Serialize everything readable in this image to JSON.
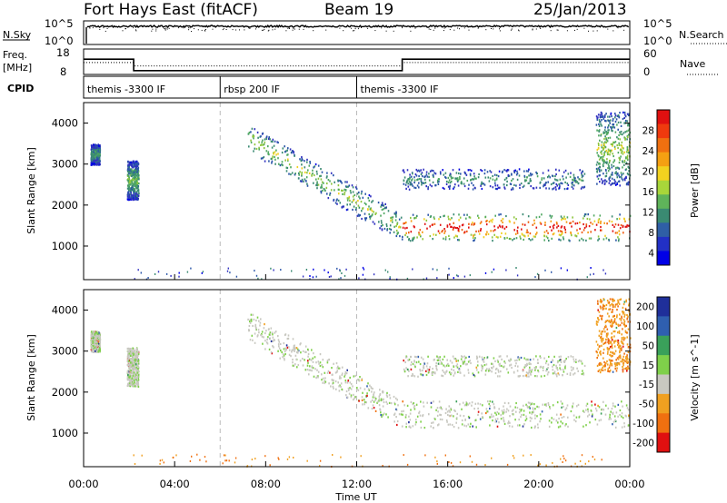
{
  "header": {
    "station": "Fort Hays East (fitACF)",
    "beam": "Beam 19",
    "date": "25/Jan/2013"
  },
  "noise_panel": {
    "left_label": "N.Sky",
    "right_label": "N.Search",
    "left_ticks": [
      "10^5",
      "10^0"
    ],
    "right_ticks": [
      "10^5",
      "10^0"
    ]
  },
  "freq_panel": {
    "left_label_1": "Freq.",
    "left_label_2": "[MHz]",
    "left_ticks": [
      "18",
      "8"
    ],
    "right_ticks": [
      "60",
      "0"
    ],
    "right_label": "Nave",
    "freq_segments_mhz": [
      {
        "start_hour": 0.0,
        "end_hour": 2.2,
        "value": 14.0
      },
      {
        "start_hour": 2.2,
        "end_hour": 14.0,
        "value": 9.5
      },
      {
        "start_hour": 14.0,
        "end_hour": 24.0,
        "value": 14.0
      }
    ],
    "nave_segments": [
      {
        "start_hour": 0.0,
        "end_hour": 2.2,
        "value": 28
      },
      {
        "start_hour": 2.2,
        "end_hour": 14.0,
        "value": 20
      },
      {
        "start_hour": 14.0,
        "end_hour": 24.0,
        "value": 28
      }
    ]
  },
  "cpid_panel": {
    "label": "CPID",
    "segments": [
      {
        "start_hour": 0.0,
        "end_hour": 6.0,
        "text": "themis -3300 IF"
      },
      {
        "start_hour": 6.0,
        "end_hour": 12.0,
        "text": "rbsp 200 IF"
      },
      {
        "start_hour": 12.0,
        "end_hour": 24.0,
        "text": "themis -3300 IF"
      }
    ]
  },
  "power_panel": {
    "ylabel": "Slant Range [km]",
    "colorbar_label": "Power [dB]",
    "colorbar_ticks": [
      "28",
      "24",
      "20",
      "16",
      "12",
      "8",
      "4"
    ]
  },
  "velocity_panel": {
    "ylabel": "Slant Range [km]",
    "colorbar_label": "Velocity [m s^-1]",
    "colorbar_ticks": [
      "200",
      "100",
      "50",
      "15",
      "-15",
      "-50",
      "-100",
      "-200"
    ]
  },
  "xaxis": {
    "label": "Time UT",
    "ticks": [
      "00:00",
      "04:00",
      "08:00",
      "12:00",
      "16:00",
      "20:00",
      "00:00"
    ]
  },
  "y_ticks": [
    "4000",
    "3000",
    "2000",
    "1000"
  ],
  "chart_data": {
    "type": "heatmap",
    "title": "Fort Hays East (fitACF)  Beam 19  25/Jan/2013",
    "xlabel": "Time UT",
    "ylabel": "Slant Range [km]",
    "xlim_hours": [
      0,
      24
    ],
    "ylim_km": [
      180,
      4500
    ],
    "vertical_dashed_lines_hours": [
      6,
      12
    ],
    "scatter_regions": [
      {
        "name": "patch_a",
        "t_start": 0.3,
        "t_end": 0.7,
        "r_low": 3000,
        "r_high": 3500,
        "power_db": 10,
        "velocity": 5
      },
      {
        "name": "patch_b",
        "t_start": 1.9,
        "t_end": 2.4,
        "r_low": 2150,
        "r_high": 3100,
        "power_db": 12,
        "velocity": 5
      },
      {
        "name": "band_main_upper",
        "t_start": 7.2,
        "t_end": 14.0,
        "r_low_start": 3300,
        "r_low_end": 1100,
        "thickness": 700,
        "power_db": 14,
        "velocity": 5
      },
      {
        "name": "band_main_lower",
        "t_start": 14.0,
        "t_end": 24.0,
        "r_low": 1150,
        "r_high": 1800,
        "power_db": 26,
        "velocity": 5
      },
      {
        "name": "band_upper_late",
        "t_start": 14.0,
        "t_end": 22.0,
        "r_low": 2400,
        "r_high": 2900,
        "power_db": 10,
        "velocity": 5
      },
      {
        "name": "rise_late",
        "t_start": 22.5,
        "t_end": 24.0,
        "r_low": 2500,
        "r_high": 4300,
        "power_db": 14,
        "velocity": -40
      }
    ]
  },
  "colors": {
    "background": "#ffffff",
    "axes": "#000000",
    "dashed_lines": "#bbbbbb",
    "gray_scatter": "#c8c8c0"
  }
}
